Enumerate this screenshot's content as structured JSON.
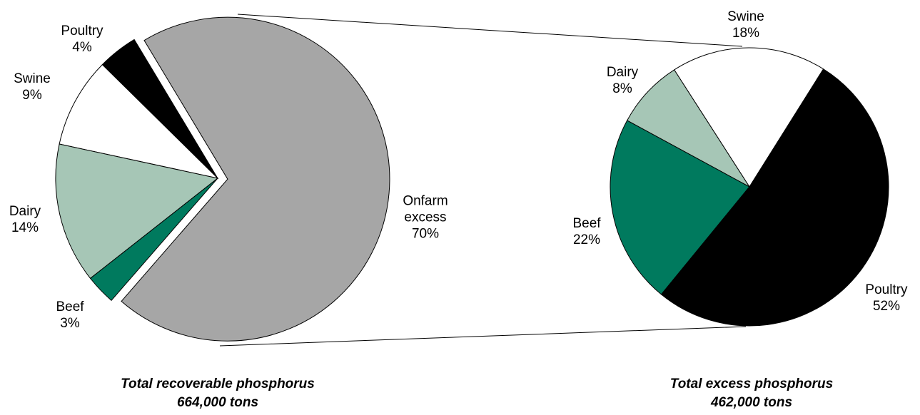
{
  "chart_data": [
    {
      "type": "pie",
      "title": "Total recoverable phosphorus",
      "subtitle": "664,000 tons",
      "categories": [
        "Poultry",
        "Swine",
        "Dairy",
        "Beef",
        "Onfarm excess"
      ],
      "values": [
        4,
        9,
        14,
        3,
        70
      ],
      "value_labels": [
        "4%",
        "9%",
        "14%",
        "3%",
        "70%"
      ],
      "colors": [
        "#000000",
        "#ffffff",
        "#a6c6b6",
        "#007a5e",
        "#a6a6a6"
      ]
    },
    {
      "type": "pie",
      "title": "Total excess phosphorus",
      "subtitle": "462,000 tons",
      "categories": [
        "Swine",
        "Dairy",
        "Beef",
        "Poultry"
      ],
      "values": [
        18,
        8,
        22,
        52
      ],
      "value_labels": [
        "18%",
        "8%",
        "22%",
        "52%"
      ],
      "colors": [
        "#ffffff",
        "#a6c6b6",
        "#007a5e",
        "#000000"
      ]
    }
  ]
}
